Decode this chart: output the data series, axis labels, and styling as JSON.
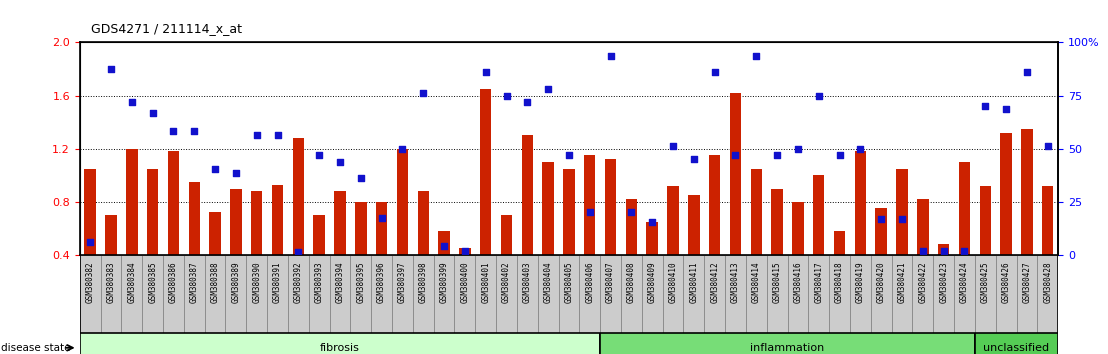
{
  "title": "GDS4271 / 211114_x_at",
  "samples": [
    "GSM380382",
    "GSM380383",
    "GSM380384",
    "GSM380385",
    "GSM380386",
    "GSM380387",
    "GSM380388",
    "GSM380389",
    "GSM380390",
    "GSM380391",
    "GSM380392",
    "GSM380393",
    "GSM380394",
    "GSM380395",
    "GSM380396",
    "GSM380397",
    "GSM380398",
    "GSM380399",
    "GSM380400",
    "GSM380401",
    "GSM380402",
    "GSM380403",
    "GSM380404",
    "GSM380405",
    "GSM380406",
    "GSM380407",
    "GSM380408",
    "GSM380409",
    "GSM380410",
    "GSM380411",
    "GSM380412",
    "GSM380413",
    "GSM380414",
    "GSM380415",
    "GSM380416",
    "GSM380417",
    "GSM380418",
    "GSM380419",
    "GSM380420",
    "GSM380421",
    "GSM380422",
    "GSM380423",
    "GSM380424",
    "GSM380425",
    "GSM380426",
    "GSM380427",
    "GSM380428"
  ],
  "transformed_count": [
    1.05,
    0.7,
    1.2,
    1.05,
    1.18,
    0.95,
    0.72,
    0.9,
    0.88,
    0.93,
    1.28,
    0.7,
    0.88,
    0.8,
    0.8,
    1.2,
    0.88,
    0.58,
    0.45,
    1.65,
    0.7,
    1.3,
    1.1,
    1.05,
    1.15,
    1.12,
    0.82,
    0.65,
    0.92,
    0.85,
    1.15,
    1.62,
    1.05,
    0.9,
    0.8,
    1.0,
    0.58,
    1.18,
    0.75,
    1.05,
    0.82,
    0.48,
    1.1,
    0.92,
    1.32,
    1.35,
    0.92
  ],
  "percentile_rank": [
    0.5,
    1.8,
    1.55,
    1.47,
    1.33,
    1.33,
    1.05,
    1.02,
    1.3,
    1.3,
    0.42,
    1.15,
    1.1,
    0.98,
    0.68,
    1.2,
    1.62,
    0.47,
    0.43,
    1.78,
    1.6,
    1.55,
    1.65,
    1.15,
    0.72,
    1.9,
    0.72,
    0.65,
    1.22,
    1.12,
    1.78,
    1.15,
    1.9,
    1.15,
    1.2,
    1.6,
    1.15,
    1.2,
    0.67,
    0.67,
    0.43,
    0.43,
    0.43,
    1.52,
    1.5,
    1.78,
    1.22
  ],
  "disease_groups": [
    {
      "label": "fibrosis",
      "start": 0,
      "end": 24,
      "color": "#ccffcc"
    },
    {
      "label": "inflammation",
      "start": 25,
      "end": 42,
      "color": "#77dd77"
    },
    {
      "label": "unclassified",
      "start": 43,
      "end": 46,
      "color": "#55cc55"
    }
  ],
  "ylim": [
    0.4,
    2.0
  ],
  "yticks_left": [
    0.4,
    0.8,
    1.2,
    1.6,
    2.0
  ],
  "yticks_right": [
    0,
    25,
    50,
    75,
    100
  ],
  "hlines": [
    0.8,
    1.2,
    1.6
  ],
  "bar_color": "#cc2200",
  "dot_color": "#1111cc",
  "bar_width": 0.55,
  "plot_bg": "#ffffff",
  "tick_bg": "#cccccc",
  "fig_bg": "#ffffff"
}
